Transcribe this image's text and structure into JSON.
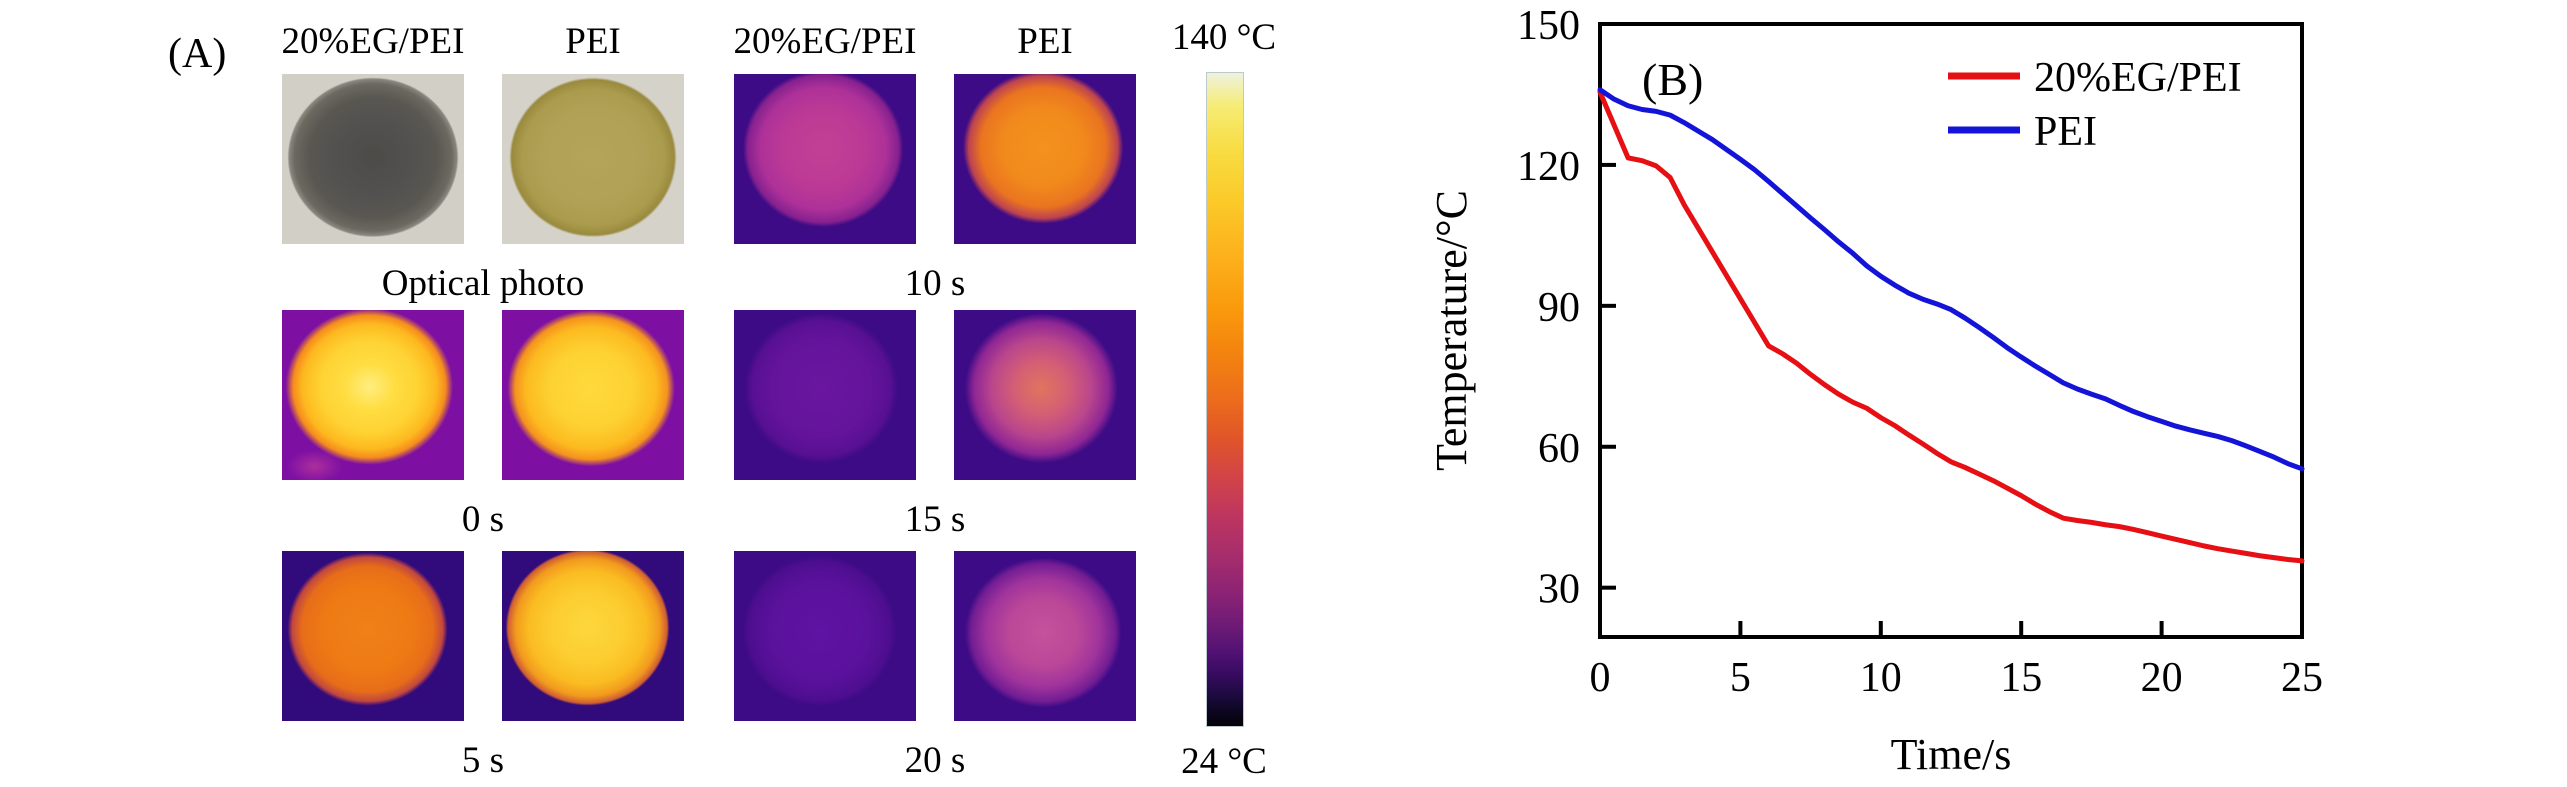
{
  "panel_a": {
    "label": "(A)",
    "col_headers": [
      "20%EG/PEI",
      "PEI",
      "20%EG/PEI",
      "PEI"
    ],
    "rows": [
      {
        "caption": "Optical photo",
        "tiles": [
          {
            "name": "optical-20eg-pei",
            "bg": "#d2cfc7",
            "disc_css": "radial-gradient(ellipse 47% 47% at 50% 49%, #4c4b47 0%, #525150 45%, #595751 75%, #6b6960 92%, #8a877e 98%, rgba(210,207,199,0) 100%)"
          },
          {
            "name": "optical-pei",
            "bg": "#d5d2c9",
            "disc_css": "radial-gradient(ellipse 46% 47% at 50% 49%, #b3a45a 0%, #b1a156 60%, #ab9b4d 85%, #998a3e 97%, rgba(213,210,201,0) 100%)"
          }
        ]
      },
      {
        "caption": "0 s",
        "tiles": [
          {
            "name": "0s-20eg-pei",
            "bg": "#7d0fa3",
            "disc_css": "radial-gradient(ellipse 22% 14% at 18% 92%, rgba(198,64,152,0.65) 0%, rgba(198,64,152,0) 70%), radial-gradient(ellipse 46% 46% at 48% 45%, #ffee80 0%, #ffdd42 30%, #fed334 58%, #fdb91f 80%, #f68c1e 91%, rgba(125,15,163,0) 100%)"
          },
          {
            "name": "0s-pei",
            "bg": "#7d0fa3",
            "disc_css": "radial-gradient(ellipse 46% 46% at 49% 46%, #ffda3c 0%, #fdd132 50%, #fcba20 78%, #f5921e 91%, rgba(125,15,163,0) 100%)"
          }
        ]
      },
      {
        "caption": "5 s",
        "tiles": [
          {
            "name": "5s-20eg-pei",
            "bg": "#310a7c",
            "disc_css": "radial-gradient(ellipse 44% 45% at 47% 46%, #f08018 0%, #ee7a14 55%, #e76d19 82%, #c2473f 94%, rgba(49,10,124,0) 100%)"
          },
          {
            "name": "5s-pei",
            "bg": "#310a7c",
            "disc_css": "radial-gradient(ellipse 45% 46% at 47% 45%, #fdd73e 0%, #fccd30 45%, #fabc22 72%, #f29a1e 88%, #cf5e33 97%, rgba(49,10,124,0) 100%)"
          }
        ]
      },
      {
        "caption": "10 s",
        "tiles": [
          {
            "name": "10s-20eg-pei",
            "bg": "#3e0b86",
            "disc_css": "radial-gradient(ellipse 44% 46% at 49% 44%, #c24094 0%, #bc3a95 50%, #ae3199 78%, #86218f 94%, rgba(62,11,134,0) 100%)"
          },
          {
            "name": "10s-pei",
            "bg": "#3e0b86",
            "disc_css": "radial-gradient(ellipse 44% 45% at 49% 43%, #f4921d 0%, #f18a1c 50%, #ea7420 78%, #bd4350 93%, rgba(62,11,134,0) 100%)"
          }
        ]
      },
      {
        "caption": "15 s",
        "tiles": [
          {
            "name": "15s-20eg-pei",
            "bg": "#3e0b86",
            "disc_css": "radial-gradient(ellipse 42% 44% at 48% 46%, #6a16a0 0%, #64139b 65%, #581093 90%, rgba(62,11,134,0) 100%)"
          },
          {
            "name": "15s-pei",
            "bg": "#3e0b86",
            "disc_css": "radial-gradient(ellipse 42% 44% at 48% 46%, #e0745e 0%, #d45f74 35%, #ba468c 65%, #8f2694 88%, rgba(62,11,134,0) 100%)"
          }
        ]
      },
      {
        "caption": "20 s",
        "tiles": [
          {
            "name": "20s-20eg-pei",
            "bg": "#3e0b86",
            "disc_css": "radial-gradient(ellipse 42% 44% at 47% 47%, #5f14a2 0%, #5a119c 65%, #4e0e90 92%, rgba(62,11,134,0) 100%)"
          },
          {
            "name": "20s-pei",
            "bg": "#3e0b86",
            "disc_css": "radial-gradient(ellipse 43% 44% at 49% 48%, #c5529c 0%, #ba4798 45%, #a1349c 72%, #731d93 92%, rgba(62,11,134,0) 100%)"
          }
        ]
      }
    ],
    "colorbar": {
      "top_label": "140 °C",
      "bottom_label": "24 °C",
      "gradient_css": "linear-gradient(to bottom, #eef2e0 0%, #f6ec75 5%, #f8dc42 12%, #fbc928 20%, #fcb11c 28%, #fa9a0c 36%, #f3830f 43%, #ec6c1c 50%, #e05529 56%, #d24348 62%, #bd3560 68%, #a62d6c 74%, #8a2275 80%, #6b1a76 85%, #4f1173 89%, #370b60 92%, #1f0b43 95%, #0e0724 97.5%, #040309 100%)"
    }
  },
  "panel_b": {
    "label": "(B)"
  },
  "chart_data": {
    "type": "line",
    "title": "",
    "xlabel": "Time/s",
    "ylabel": "Temperature/°C",
    "xlim": [
      0,
      25
    ],
    "ylim": [
      19.5,
      150
    ],
    "xticks": [
      0,
      5,
      10,
      15,
      20,
      25
    ],
    "yticks": [
      30,
      60,
      90,
      120,
      150
    ],
    "grid": false,
    "legend_position": "top-right-inside",
    "x": [
      0,
      0.5,
      1,
      1.5,
      2,
      2.5,
      3,
      3.5,
      4,
      4.5,
      5,
      5.5,
      6,
      6.5,
      7,
      7.5,
      8,
      8.5,
      9,
      9.5,
      10,
      10.5,
      11,
      11.5,
      12,
      12.5,
      13,
      13.5,
      14,
      14.5,
      15,
      15.5,
      16,
      16.5,
      17,
      17.5,
      18,
      18.5,
      19,
      19.5,
      20,
      20.5,
      21,
      21.5,
      22,
      22.5,
      23,
      23.5,
      24,
      24.5,
      25
    ],
    "series": [
      {
        "name": "20%EG/PEI",
        "color": "#e60f14",
        "values": [
          135.5,
          128.5,
          121.5,
          120.9,
          119.8,
          117.3,
          111.5,
          106.5,
          101.5,
          96.5,
          91.5,
          86.5,
          81.5,
          79.8,
          77.8,
          75.4,
          73.2,
          71.2,
          69.5,
          68.2,
          66.2,
          64.5,
          62.5,
          60.6,
          58.6,
          56.8,
          55.6,
          54.2,
          52.8,
          51.2,
          49.6,
          47.8,
          46.2,
          44.8,
          44.3,
          43.9,
          43.4,
          43.0,
          42.4,
          41.7,
          41.0,
          40.3,
          39.6,
          38.9,
          38.3,
          37.8,
          37.3,
          36.8,
          36.4,
          36.0,
          35.7
        ]
      },
      {
        "name": "PEI",
        "color": "#1414d9",
        "values": [
          136,
          134,
          132.6,
          131.8,
          131.4,
          130.6,
          129,
          127.2,
          125.4,
          123.3,
          121.2,
          119,
          116.5,
          113.9,
          111.3,
          108.7,
          106.2,
          103.6,
          101.2,
          98.5,
          96.3,
          94.4,
          92.7,
          91.4,
          90.4,
          89.2,
          87.4,
          85.4,
          83.3,
          81.1,
          79.1,
          77.2,
          75.4,
          73.6,
          72.3,
          71.2,
          70.2,
          68.8,
          67.5,
          66.4,
          65.4,
          64.4,
          63.6,
          62.9,
          62.2,
          61.3,
          60.2,
          59.0,
          57.8,
          56.4,
          55.3
        ]
      }
    ]
  }
}
